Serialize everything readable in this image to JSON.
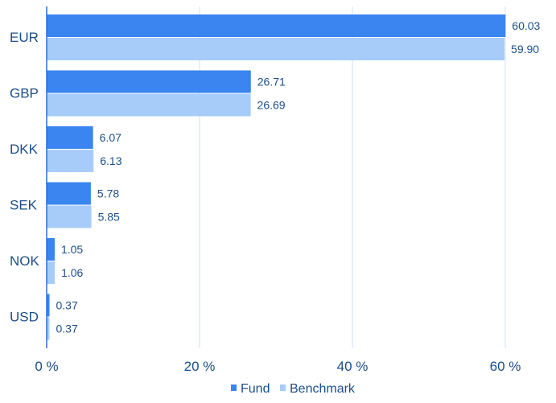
{
  "chart_data": {
    "type": "bar",
    "orientation": "horizontal",
    "categories": [
      "EUR",
      "GBP",
      "DKK",
      "SEK",
      "NOK",
      "USD"
    ],
    "series": [
      {
        "name": "Fund",
        "values": [
          60.03,
          26.71,
          6.07,
          5.78,
          1.05,
          0.37
        ],
        "labels": [
          "60.03",
          "26.71",
          "6.07",
          "5.78",
          "1.05",
          "0.37"
        ]
      },
      {
        "name": "Benchmark",
        "values": [
          59.9,
          26.69,
          6.13,
          5.85,
          1.06,
          0.37
        ],
        "labels": [
          "59.90",
          "26.69",
          "6.13",
          "5.85",
          "1.06",
          "0.37"
        ]
      }
    ],
    "x_ticks": [
      "0 %",
      "20 %",
      "40 %",
      "60 %"
    ],
    "x_tick_values": [
      0,
      20,
      40,
      60
    ],
    "xlim": [
      0,
      60
    ],
    "grid": true,
    "legend_position": "bottom-center",
    "colors": {
      "Fund": "#3a85f0",
      "Benchmark": "#a7ccfa",
      "grid": "#cfe2f7",
      "axis": "#2a6fd6",
      "text": "#1b4f8a"
    }
  }
}
